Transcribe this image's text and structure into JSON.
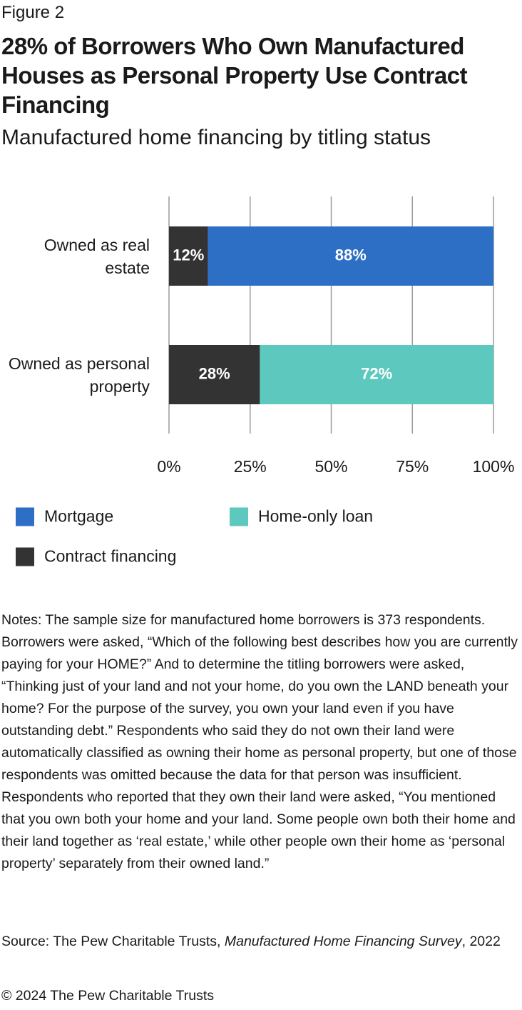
{
  "figure_label": "Figure 2",
  "chart_data": {
    "type": "bar",
    "orientation": "horizontal",
    "stacked": true,
    "title": "28% of Borrowers Who Own Manufactured Houses as Personal Property Use Contract Financing",
    "subtitle": "Manufactured home financing by titling status",
    "categories": [
      "Owned as real estate",
      "Owned as personal property"
    ],
    "series": [
      {
        "name": "Contract financing",
        "color": "#333333",
        "values": [
          12,
          28
        ],
        "value_labels": [
          "12%",
          "28%"
        ]
      },
      {
        "name": "Mortgage",
        "color": "#2e6fc6",
        "values": [
          88,
          null
        ],
        "value_labels": [
          "88%",
          null
        ]
      },
      {
        "name": "Home-only loan",
        "color": "#5cc8be",
        "values": [
          null,
          72
        ],
        "value_labels": [
          null,
          "72%"
        ]
      }
    ],
    "xlim": [
      0,
      100
    ],
    "xticks": [
      {
        "value": 0,
        "label": "0%"
      },
      {
        "value": 25,
        "label": "25%"
      },
      {
        "value": 50,
        "label": "50%"
      },
      {
        "value": 75,
        "label": "75%"
      },
      {
        "value": 100,
        "label": "100%"
      }
    ],
    "grid": true
  },
  "notes": "Notes: The sample size for manufactured home borrowers is 373 respondents. Borrowers were asked, “Which of the following best describes how you are currently paying for your HOME?” And to determine the titling borrowers were asked, “Thinking just of your land and not your home, do you own the LAND beneath your home? For the purpose of the survey, you own your land even if you have outstanding debt.” Respondents who said they do not own their land were automatically classified as owning their home as personal property, but one of those respondents was omitted because the data for that person was insufficient. Respondents who reported that they own their land were asked, “You mentioned that you own both your home and your land. Some people own both their home and their land together as ‘real estate,’ while other people own their home as ‘personal property’ separately from their owned land.”",
  "source": {
    "prefix": "Source: The Pew Charitable Trusts, ",
    "title": "Manufactured Home Financing Survey",
    "suffix": ", 2022"
  },
  "copyright": "© 2024 The Pew Charitable Trusts"
}
